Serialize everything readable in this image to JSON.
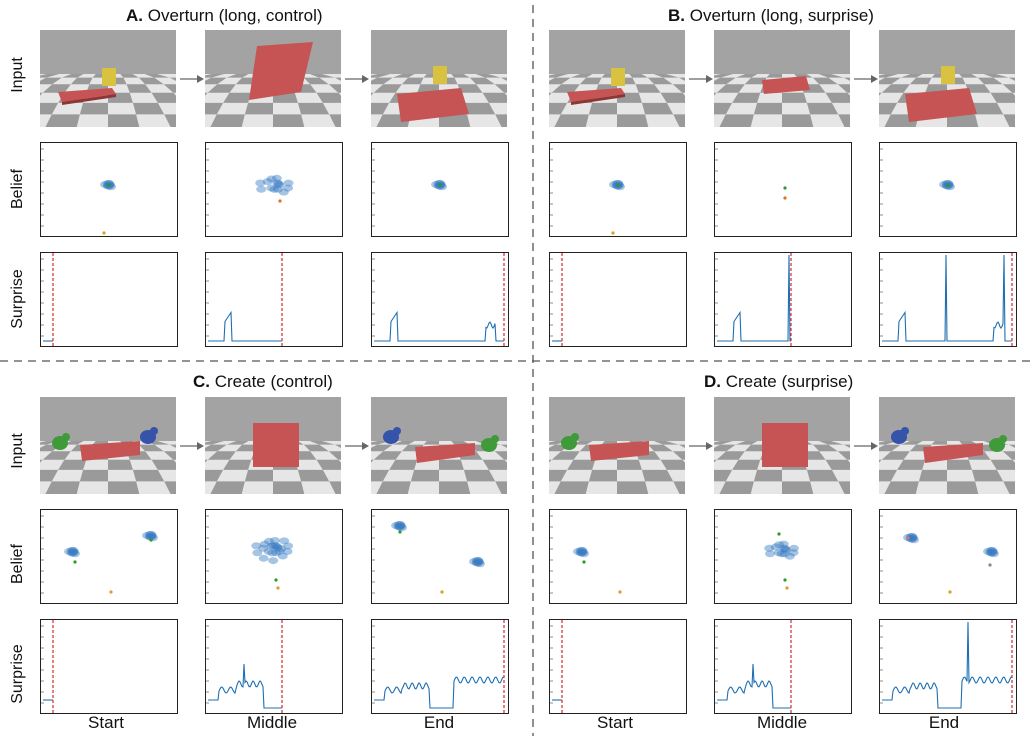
{
  "panels": [
    {
      "letter": "A.",
      "title": "Overturn (long, control)",
      "variant": "overturn_control"
    },
    {
      "letter": "B.",
      "title": "Overturn (long, surprise)",
      "variant": "overturn_surprise"
    },
    {
      "letter": "C.",
      "title": "Create (control)",
      "variant": "create_control"
    },
    {
      "letter": "D.",
      "title": "Create (surprise)",
      "variant": "create_surprise"
    }
  ],
  "row_labels": {
    "input": "Input",
    "belief": "Belief",
    "surprise": "Surprise"
  },
  "column_labels": [
    "Start",
    "Middle",
    "End",
    "Start",
    "Middle",
    "End"
  ],
  "colors": {
    "board_light": "#e6e6e6",
    "board_dark": "#8c8c8c",
    "wall": "#9a9a9a",
    "screen_red": "#c65454",
    "cube_yellow": "#d8c23f",
    "toy_green": "#3f9a3a",
    "toy_blue": "#3553a8",
    "belief_blue": "#3a7cc4",
    "surprise_line": "#1f6fb2",
    "event_marker": "#d62728",
    "divider": "#555555"
  }
}
